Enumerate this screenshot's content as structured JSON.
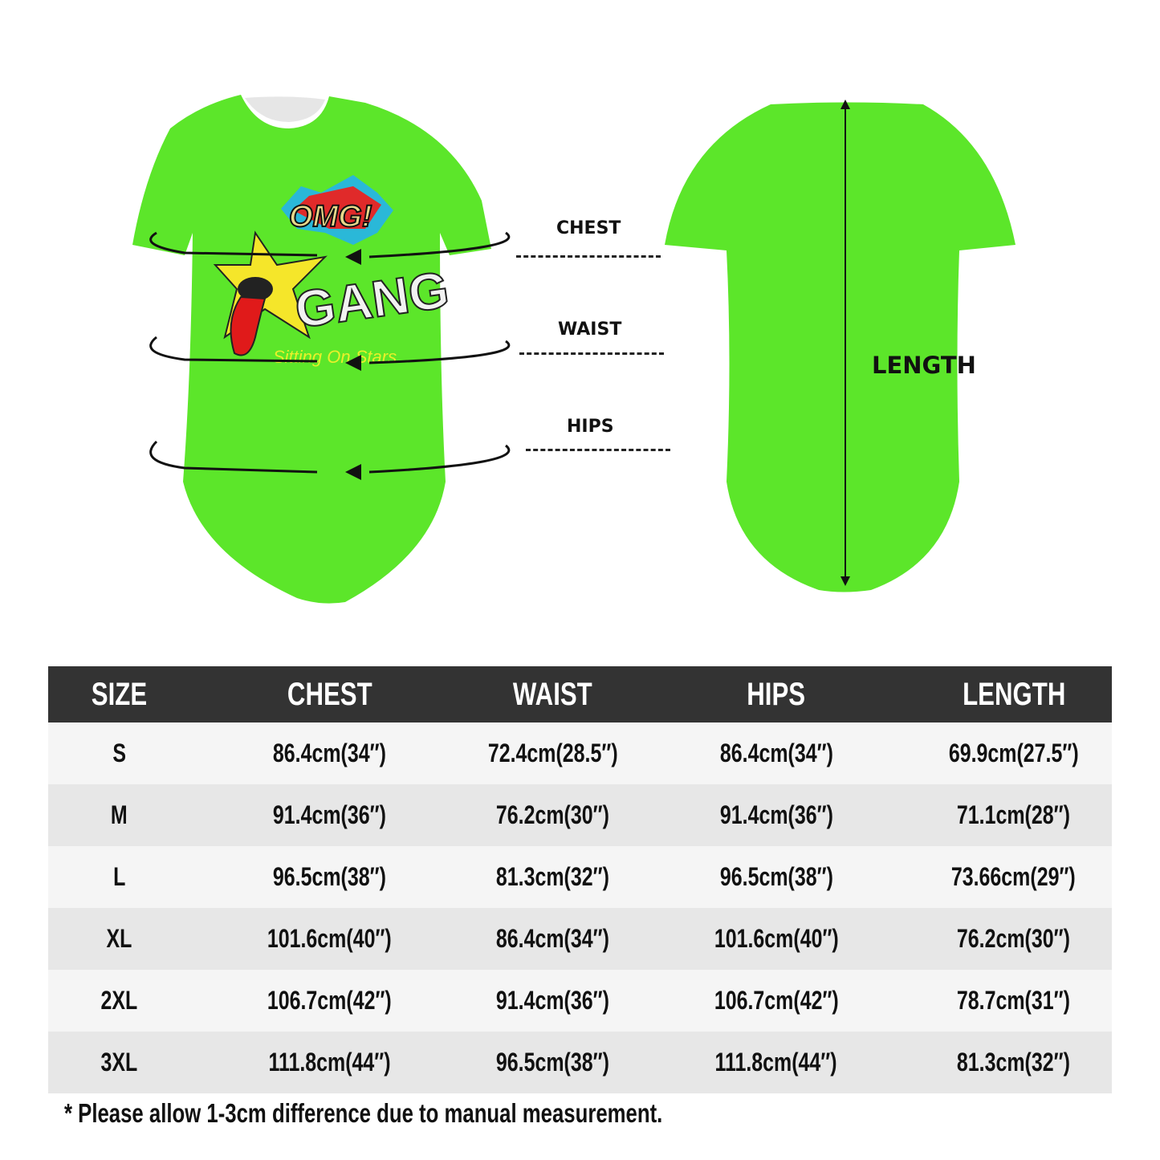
{
  "product_color": "#5ce62a",
  "logo": {
    "line1": "OMG!",
    "line2": "GANG",
    "tagline": "Sitting On Stars"
  },
  "labels": {
    "chest": "CHEST",
    "waist": "WAIST",
    "hips": "HIPS",
    "length": "LENGTH"
  },
  "table": {
    "headers": [
      "SIZE",
      "CHEST",
      "WAIST",
      "HIPS",
      "LENGTH"
    ],
    "rows": [
      [
        "S",
        "86.4cm(34″)",
        "72.4cm(28.5″)",
        "86.4cm(34″)",
        "69.9cm(27.5″)"
      ],
      [
        "M",
        "91.4cm(36″)",
        "76.2cm(30″)",
        "91.4cm(36″)",
        "71.1cm(28″)"
      ],
      [
        "L",
        "96.5cm(38″)",
        "81.3cm(32″)",
        "96.5cm(38″)",
        "73.66cm(29″)"
      ],
      [
        "XL",
        "101.6cm(40″)",
        "86.4cm(34″)",
        "101.6cm(40″)",
        "76.2cm(30″)"
      ],
      [
        "2XL",
        "106.7cm(42″)",
        "91.4cm(36″)",
        "106.7cm(42″)",
        "78.7cm(31″)"
      ],
      [
        "3XL",
        "111.8cm(44″)",
        "96.5cm(38″)",
        "111.8cm(44″)",
        "81.3cm(32″)"
      ]
    ]
  },
  "note": "* Please allow 1-3cm difference due to manual measurement."
}
